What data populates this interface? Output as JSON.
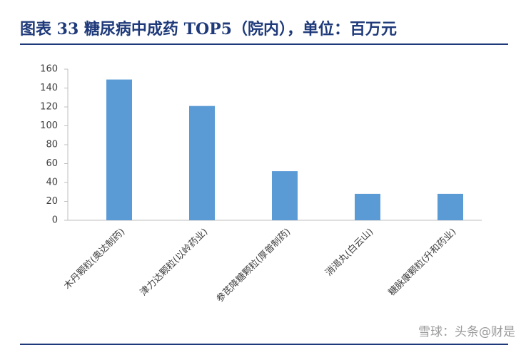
{
  "chart_data": {
    "type": "bar",
    "title": "图表 33   糖尿病中成药 TOP5（院内），单位：百万元",
    "categories": [
      "木丹颗粒(奥达制药)",
      "津力达颗粒(以岭药业)",
      "参芪降糖颗粒(厚普制药)",
      "消渴丸(白云山)",
      "糖脉康颗粒(升和药业)"
    ],
    "values": [
      149,
      121,
      52,
      28,
      28
    ],
    "color": "#5b9bd5",
    "ylim": [
      0,
      160
    ],
    "yticks": [
      0,
      20,
      40,
      60,
      80,
      100,
      120,
      140,
      160
    ],
    "grid": false,
    "watermark": "雪球：头条@财是"
  }
}
